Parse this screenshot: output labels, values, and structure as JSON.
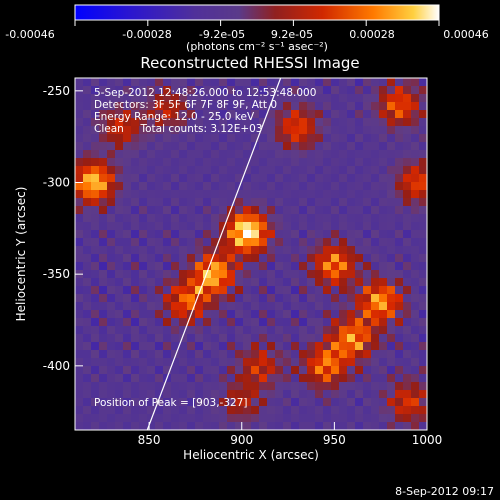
{
  "chart_data": {
    "type": "heatmap",
    "title": "Reconstructed RHESSI Image",
    "xlabel": "Heliocentric X (arcsec)",
    "ylabel": "Heliocentric Y (arcsec)",
    "xlim": [
      810,
      1000
    ],
    "ylim": [
      -435,
      -243
    ],
    "x_ticks": [
      850,
      900,
      950,
      1000
    ],
    "y_ticks": [
      -250,
      -300,
      -350,
      -400
    ],
    "colorbar": {
      "min": -0.00046,
      "max": 0.00046,
      "tick_labels": [
        "-0.00046",
        "-0.00028",
        "-9.2e-05",
        "9.2e-05",
        "0.00028",
        "0.00046"
      ],
      "tick_values": [
        -0.00046,
        -0.00028,
        -9.2e-05,
        9.2e-05,
        0.00028,
        0.00046
      ],
      "unit_label": "(photons cm⁻² s⁻¹ asec⁻²)",
      "colors": [
        "#0000ff",
        "#4a2aa0",
        "#5a3a90",
        "#b02000",
        "#ff8000",
        "#ffffff"
      ]
    },
    "annotations": [
      "5-Sep-2012 12:48:26.000 to 12:53:48.000",
      "Detectors: 3F 5F 6F 7F 8F 9F, Att 0",
      "Energy Range: 12.0 - 25.0 keV",
      "Clean     Total counts: 3.12E+03",
      "Position of Peak = [903,-327]"
    ],
    "peak": {
      "x": 903,
      "y": -327
    },
    "limb_line": [
      [
        849,
        -435
      ],
      [
        921,
        -243
      ]
    ],
    "bright_sources": [
      {
        "x": 903,
        "y": -327,
        "intensity": 1.0
      },
      {
        "x": 885,
        "y": -350,
        "intensity": 0.8
      },
      {
        "x": 870,
        "y": -365,
        "intensity": 0.6
      },
      {
        "x": 820,
        "y": -300,
        "intensity": 0.85
      },
      {
        "x": 950,
        "y": -345,
        "intensity": 0.7
      },
      {
        "x": 975,
        "y": -365,
        "intensity": 0.75
      },
      {
        "x": 960,
        "y": -385,
        "intensity": 0.7
      },
      {
        "x": 945,
        "y": -400,
        "intensity": 0.65
      },
      {
        "x": 930,
        "y": -270,
        "intensity": 0.55
      },
      {
        "x": 985,
        "y": -258,
        "intensity": 0.6
      },
      {
        "x": 995,
        "y": -300,
        "intensity": 0.55
      },
      {
        "x": 835,
        "y": -270,
        "intensity": 0.45
      },
      {
        "x": 860,
        "y": -260,
        "intensity": 0.4
      },
      {
        "x": 910,
        "y": -400,
        "intensity": 0.45
      },
      {
        "x": 990,
        "y": -420,
        "intensity": 0.5
      },
      {
        "x": 900,
        "y": -420,
        "intensity": 0.35
      }
    ]
  },
  "footer": {
    "timestamp": "8-Sep-2012 09:17"
  },
  "colors": {
    "background": "#000000",
    "text": "#ffffff",
    "limb_line": "#ffffff"
  }
}
